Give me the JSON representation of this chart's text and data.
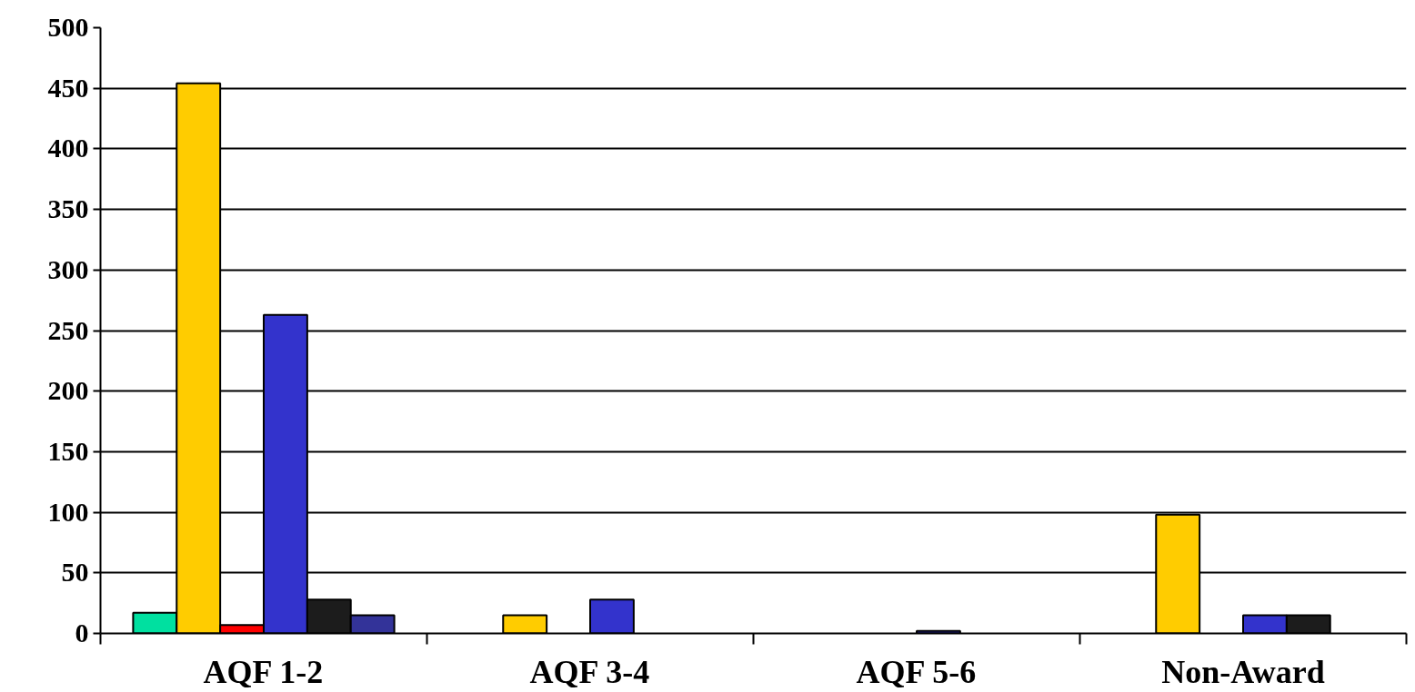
{
  "chart_data": {
    "type": "bar",
    "categories": [
      "AQF 1-2",
      "AQF 3-4",
      "AQF 5-6",
      "Non-Award"
    ],
    "series": [
      {
        "color": "#00e0a0",
        "values": [
          17,
          null,
          null,
          null
        ]
      },
      {
        "color": "#ffcc00",
        "values": [
          454,
          15,
          null,
          98
        ]
      },
      {
        "color": "#ff0000",
        "values": [
          7,
          null,
          null,
          null
        ]
      },
      {
        "color": "#3333cc",
        "values": [
          263,
          28,
          2,
          15
        ]
      },
      {
        "color": "#1c1c1c",
        "values": [
          28,
          null,
          null,
          15
        ]
      },
      {
        "color": "#333399",
        "values": [
          15,
          null,
          null,
          null
        ]
      }
    ],
    "ylim": [
      0,
      500
    ],
    "yticks": [
      0,
      50,
      100,
      150,
      200,
      250,
      300,
      350,
      400,
      450,
      500
    ],
    "grid": "y"
  }
}
